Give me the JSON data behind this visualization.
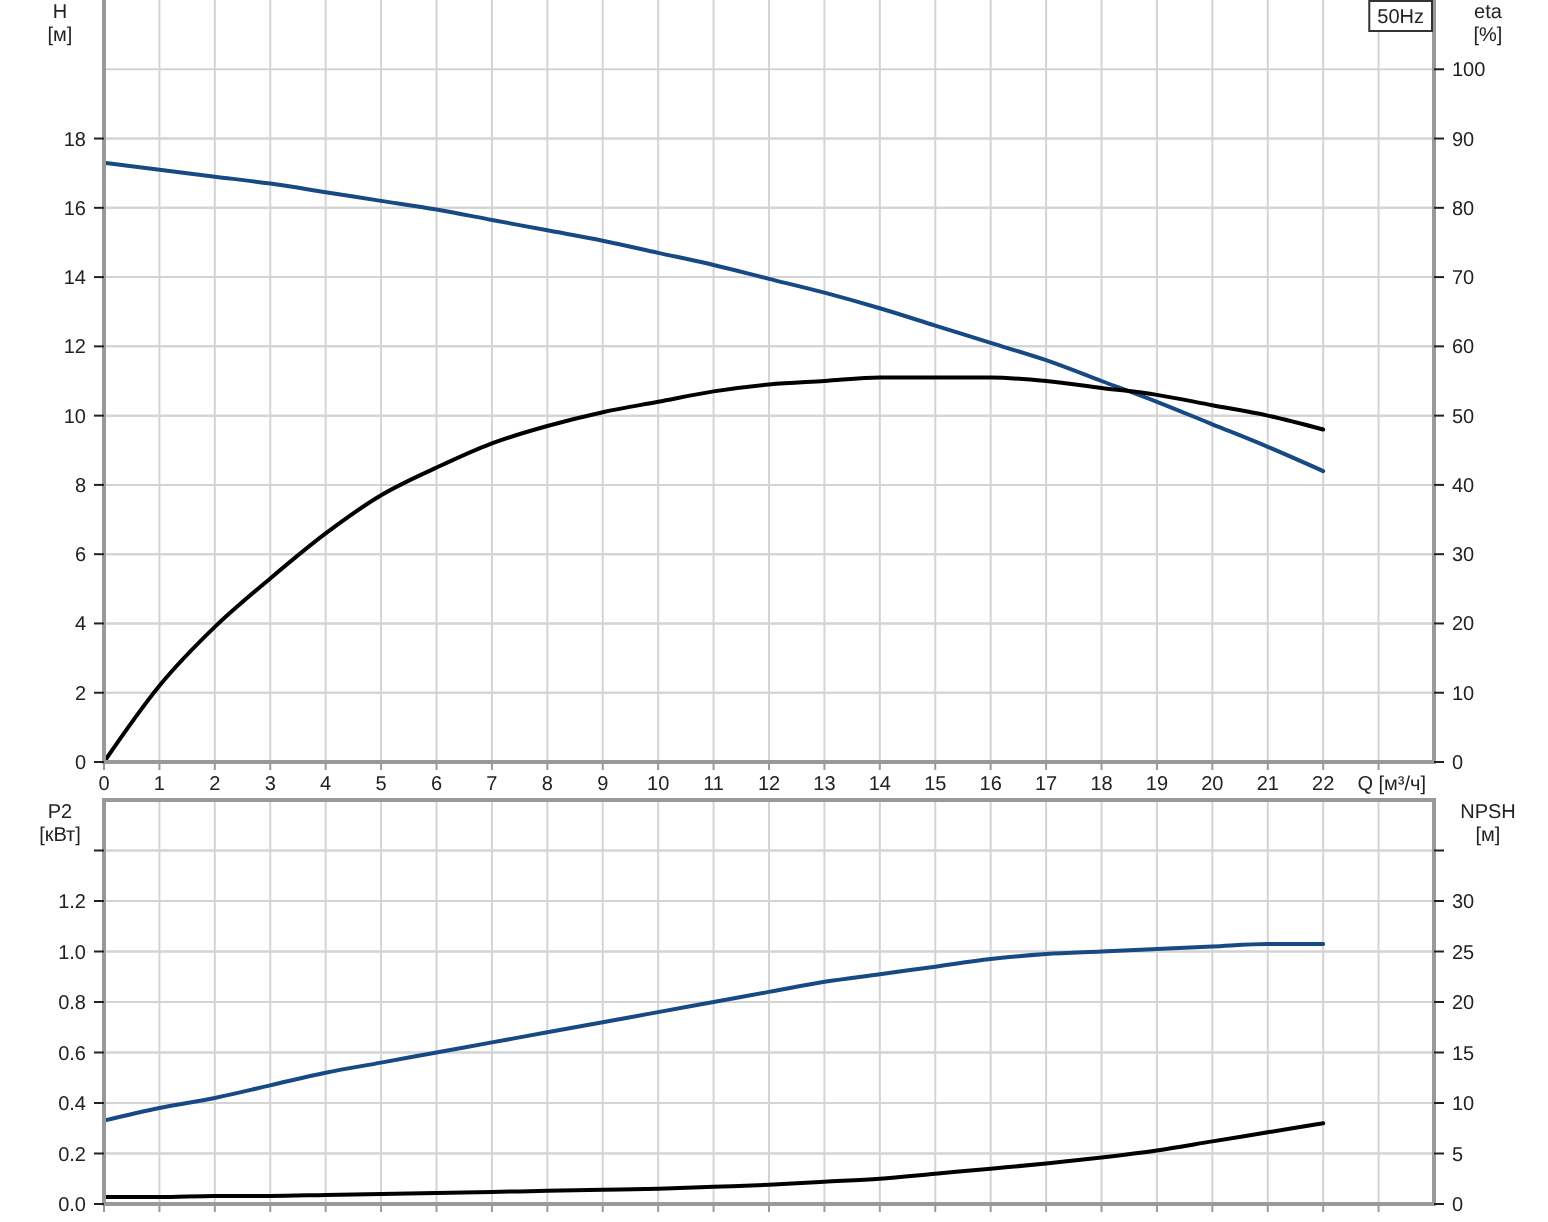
{
  "chart_data": [
    {
      "type": "line",
      "xlabel": "Q [м³/ч]",
      "ylabel": "H [м]",
      "y2label": "eta [%]",
      "annotations": [
        "50Hz"
      ],
      "x": [
        0,
        1,
        2,
        3,
        4,
        5,
        6,
        7,
        8,
        9,
        10,
        11,
        12,
        13,
        14,
        15,
        16,
        17,
        18,
        19,
        20,
        21,
        22
      ],
      "xlim": [
        0,
        24
      ],
      "xticks": [
        0,
        1,
        2,
        3,
        4,
        5,
        6,
        7,
        8,
        9,
        10,
        11,
        12,
        13,
        14,
        15,
        16,
        17,
        18,
        19,
        20,
        21,
        22,
        {
          "value": 23,
          "label": null
        }
      ],
      "ylim": [
        0,
        22
      ],
      "yticks": [
        0,
        2,
        4,
        6,
        8,
        10,
        12,
        14,
        16,
        18
      ],
      "y2lim": [
        0,
        110
      ],
      "y2ticks": [
        0,
        10,
        20,
        30,
        40,
        50,
        60,
        70,
        80,
        90,
        100
      ],
      "grid": true,
      "series": [
        {
          "color": "#174a84",
          "values": [
            17.3,
            17.1,
            16.9,
            16.7,
            16.45,
            16.2,
            15.95,
            15.65,
            15.35,
            15.05,
            14.7,
            14.35,
            13.95,
            13.55,
            13.1,
            12.6,
            12.1,
            11.6,
            11.0,
            10.4,
            9.75,
            9.1,
            8.4
          ]
        },
        {
          "color": "#000000",
          "axis": "y2",
          "values": [
            0,
            11,
            19.5,
            26.5,
            33,
            38.5,
            42.5,
            46,
            48.5,
            50.5,
            52,
            53.5,
            54.5,
            55,
            55.5,
            55.5,
            55.5,
            55,
            54,
            53,
            51.5,
            50,
            48
          ]
        }
      ]
    },
    {
      "type": "line",
      "ylabel": "P2 [кВт]",
      "y2label": "NPSH [м]",
      "tick_labels": "y",
      "x": [
        0,
        1,
        2,
        3,
        4,
        5,
        6,
        7,
        8,
        9,
        10,
        11,
        12,
        13,
        14,
        15,
        16,
        17,
        18,
        19,
        20,
        21,
        22
      ],
      "xlim": [
        0,
        24
      ],
      "xticks": [
        0,
        1,
        2,
        3,
        4,
        5,
        6,
        7,
        8,
        9,
        10,
        11,
        12,
        13,
        14,
        15,
        16,
        17,
        18,
        19,
        20,
        21,
        22,
        23
      ],
      "ylim": [
        0,
        1.6
      ],
      "yticks": [
        {
          "value": 0,
          "label": "0.0"
        },
        0.2,
        0.4,
        0.6,
        0.8,
        {
          "value": 1,
          "label": "1.0"
        },
        1.2,
        {
          "value": 1.4,
          "label": null
        }
      ],
      "y2lim": [
        0,
        40
      ],
      "y2ticks": [
        0,
        5,
        10,
        15,
        20,
        25,
        30,
        {
          "value": 35,
          "label": null
        }
      ],
      "grid": true,
      "series": [
        {
          "color": "#174a84",
          "values": [
            0.33,
            0.38,
            0.42,
            0.47,
            0.52,
            0.56,
            0.6,
            0.64,
            0.68,
            0.72,
            0.76,
            0.8,
            0.84,
            0.88,
            0.91,
            0.94,
            0.97,
            0.99,
            1.0,
            1.01,
            1.02,
            1.03,
            1.03
          ]
        },
        {
          "color": "#000000",
          "axis": "y2",
          "values": [
            0.7,
            0.7,
            0.8,
            0.8,
            0.9,
            1.0,
            1.1,
            1.2,
            1.3,
            1.4,
            1.5,
            1.7,
            1.9,
            2.2,
            2.5,
            3.0,
            3.5,
            4.0,
            4.6,
            5.3,
            6.2,
            7.1,
            8.0
          ]
        }
      ]
    }
  ]
}
